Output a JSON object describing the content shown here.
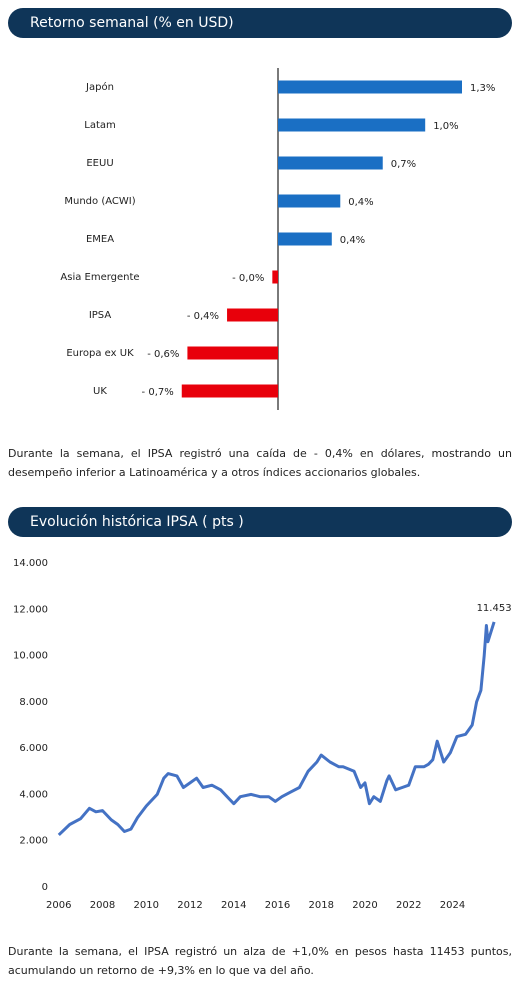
{
  "chart_data": [
    {
      "type": "bar",
      "title": "Retorno semanal (% en USD)",
      "categories": [
        "Japón",
        "Latam",
        "EEUU",
        "Mundo (ACWI)",
        "EMEA",
        "Asia Emergente",
        "IPSA",
        "Europa ex UK",
        "UK"
      ],
      "values": [
        1.3,
        1.04,
        0.74,
        0.44,
        0.38,
        -0.04,
        -0.36,
        -0.64,
        -0.68
      ],
      "value_labels": [
        "1,3%",
        "1,0%",
        "0,7%",
        "0,4%",
        "0,4%",
        "- 0,0%",
        "- 0,4%",
        "- 0,6%",
        "- 0,7%"
      ],
      "color": "#1a6fc4",
      "negative_color": "#e8000b",
      "caption": "Durante la semana, el IPSA registró una caída de - 0,4% en dólares, mostrando un desempeño inferior a Latinoamérica y a otros índices accionarios globales."
    },
    {
      "type": "line",
      "title": "Evolución histórica IPSA ( pts )",
      "x": [
        2006.0,
        2006.5,
        2007.0,
        2007.4,
        2007.7,
        2008.0,
        2008.4,
        2008.7,
        2009.0,
        2009.3,
        2009.6,
        2010.0,
        2010.5,
        2010.8,
        2011.0,
        2011.4,
        2011.7,
        2012.0,
        2012.3,
        2012.6,
        2013.0,
        2013.4,
        2013.8,
        2014.0,
        2014.3,
        2014.8,
        2015.2,
        2015.6,
        2015.9,
        2016.2,
        2016.6,
        2017.0,
        2017.4,
        2017.8,
        2018.0,
        2018.4,
        2018.8,
        2019.0,
        2019.5,
        2019.8,
        2020.0,
        2020.2,
        2020.4,
        2020.7,
        2021.0,
        2021.1,
        2021.4,
        2021.7,
        2022.0,
        2022.3,
        2022.7,
        2022.9,
        2023.1,
        2023.3,
        2023.6,
        2023.9,
        2024.2,
        2024.6,
        2024.9,
        2025.1,
        2025.3,
        2025.45,
        2025.55,
        2025.62,
        2025.75,
        2025.9
      ],
      "values": [
        2250,
        2700,
        2950,
        3400,
        3250,
        3300,
        2900,
        2700,
        2400,
        2500,
        3000,
        3500,
        4000,
        4700,
        4900,
        4800,
        4300,
        4500,
        4700,
        4300,
        4400,
        4200,
        3800,
        3600,
        3900,
        4000,
        3900,
        3900,
        3700,
        3900,
        4100,
        4300,
        5000,
        5400,
        5700,
        5400,
        5200,
        5200,
        5000,
        4300,
        4500,
        3600,
        3900,
        3700,
        4600,
        4800,
        4200,
        4300,
        4400,
        5200,
        5200,
        5300,
        5500,
        6300,
        5400,
        5800,
        6500,
        6600,
        7000,
        8000,
        8500,
        10000,
        11300,
        10600,
        11000,
        11453
      ],
      "color": "#4472c4",
      "xlim": [
        2005.6,
        2026.4
      ],
      "xticks": [
        2006,
        2008,
        2010,
        2012,
        2014,
        2016,
        2018,
        2020,
        2022,
        2024
      ],
      "ylim": [
        0,
        14000
      ],
      "yticks": [
        0,
        {
          "value": 2000,
          "label": "2.000"
        },
        {
          "value": 4000,
          "label": "4.000"
        },
        {
          "value": 6000,
          "label": "6.000"
        },
        {
          "value": 8000,
          "label": "8.000"
        },
        {
          "value": 10000,
          "label": "10.000"
        },
        {
          "value": 12000,
          "label": "12.000"
        },
        {
          "value": 14000,
          "label": "14.000"
        }
      ],
      "grid": false,
      "annotations": [
        {
          "x": 2025.9,
          "y": 11453,
          "text": "11.453"
        }
      ],
      "caption": "Durante la semana, el IPSA registró un alza de +1,0% en pesos hasta 11453 puntos, acumulando un retorno de +9,3% en lo que va del año."
    }
  ]
}
